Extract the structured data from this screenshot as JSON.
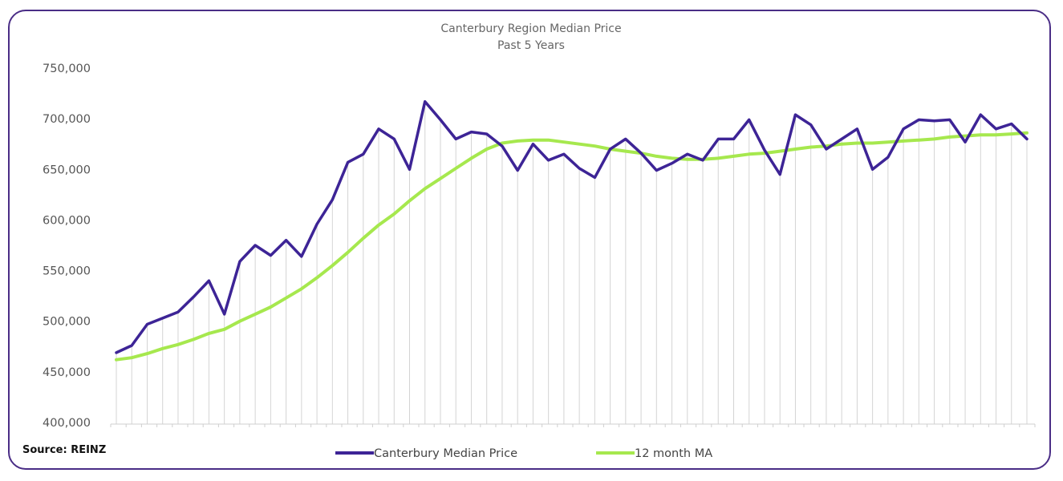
{
  "chart_data": {
    "type": "line",
    "title": "Canterbury Region Median Price",
    "subtitle": "Past 5 Years",
    "source": "Source: REINZ",
    "ylim": [
      400000,
      750000
    ],
    "yticks": [
      "400,000",
      "450,000",
      "500,000",
      "550,000",
      "600,000",
      "650,000",
      "700,000",
      "750,000"
    ],
    "yticks_values": [
      400000,
      450000,
      500000,
      550000,
      600000,
      650000,
      700000,
      750000
    ],
    "grid": "vertical drop lines per month",
    "legend_position": "bottom-center",
    "series": [
      {
        "name": "Canterbury Median Price",
        "color": "#3d2496",
        "values": [
          469000,
          476000,
          497000,
          503000,
          509000,
          524000,
          540000,
          507000,
          559000,
          575000,
          565000,
          580000,
          564000,
          596000,
          620000,
          657000,
          665000,
          690000,
          680000,
          650000,
          717000,
          699000,
          680000,
          687000,
          685000,
          673000,
          649000,
          675000,
          659000,
          665000,
          651000,
          642000,
          670000,
          680000,
          666000,
          649000,
          656000,
          665000,
          659000,
          680000,
          680000,
          699000,
          669000,
          645000,
          704000,
          694000,
          670000,
          680000,
          690000,
          650000,
          662000,
          690000,
          699000,
          698000,
          699000,
          677000,
          704000,
          690000,
          695000,
          680000
        ]
      },
      {
        "name": "12 month MA",
        "color": "#a6e84e",
        "values": [
          462000,
          464000,
          468000,
          473000,
          477000,
          482000,
          488000,
          492000,
          500000,
          507000,
          514000,
          523000,
          532000,
          543000,
          555000,
          568000,
          582000,
          595000,
          606000,
          619000,
          631000,
          641000,
          651000,
          661000,
          670000,
          676000,
          678000,
          679000,
          679000,
          677000,
          675000,
          673000,
          670000,
          668000,
          666000,
          663000,
          661000,
          660000,
          660000,
          661000,
          663000,
          665000,
          666000,
          668000,
          670000,
          672000,
          673000,
          675000,
          676000,
          676000,
          677000,
          678000,
          679000,
          680000,
          682000,
          683000,
          684000,
          684000,
          685000,
          686000
        ]
      }
    ]
  }
}
